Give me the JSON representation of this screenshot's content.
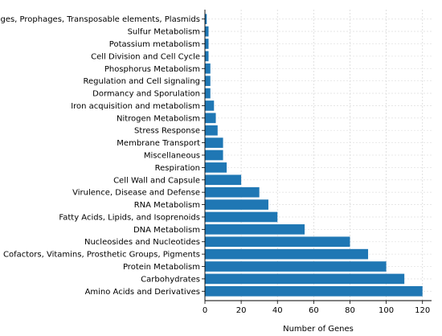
{
  "chart_data": {
    "type": "bar",
    "orientation": "horizontal",
    "categories": [
      "Amino Acids and Derivatives",
      "Carbohydrates",
      "Protein Metabolism",
      "Cofactors, Vitamins, Prosthetic Groups, Pigments",
      "Nucleosides and Nucleotides",
      "DNA Metabolism",
      "Fatty Acids, Lipids, and Isoprenoids",
      "RNA Metabolism",
      "Virulence, Disease and Defense",
      "Cell Wall and Capsule",
      "Respiration",
      "Miscellaneous",
      "Membrane Transport",
      "Stress Response",
      "Nitrogen Metabolism",
      "Iron acquisition and metabolism",
      "Dormancy and Sporulation",
      "Regulation and Cell signaling",
      "Phosphorus Metabolism",
      "Cell Division and Cell Cycle",
      "Potassium metabolism",
      "Sulfur Metabolism",
      "Phages, Prophages, Transposable elements, Plasmids"
    ],
    "values": [
      120,
      110,
      100,
      90,
      80,
      55,
      40,
      35,
      30,
      20,
      12,
      10,
      10,
      7,
      6,
      5,
      3,
      3,
      3,
      2,
      2,
      2,
      1
    ],
    "xlabel": "Number of Genes",
    "ylabel": "",
    "title": "",
    "xlim": [
      0,
      125
    ],
    "xticks": [
      0,
      20,
      40,
      60,
      80,
      100,
      120
    ],
    "grid": true,
    "bar_color": "#1f77b4"
  }
}
